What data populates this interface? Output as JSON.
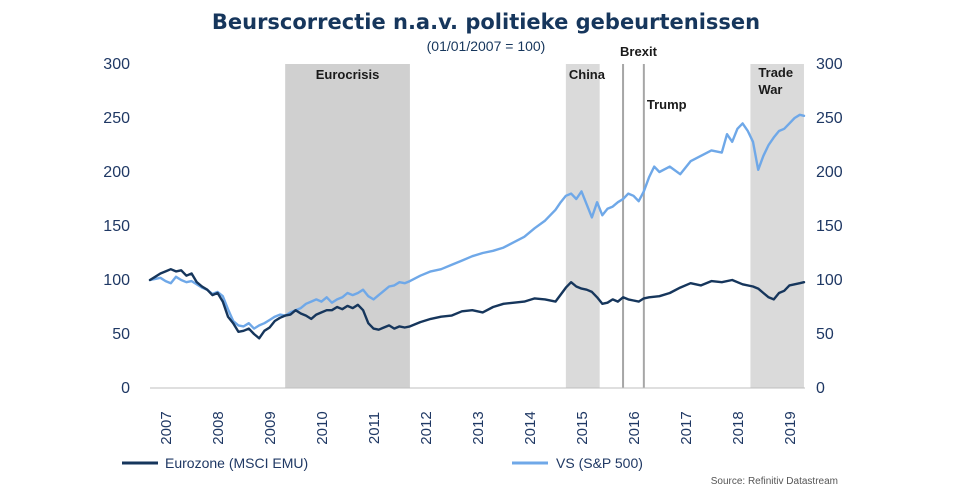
{
  "chart_data": {
    "type": "line",
    "title": "Beurscorrectie n.a.v. politieke gebeurtenissen",
    "subtitle": "(01/01/2007 = 100)",
    "source": "Source: Refinitiv Datastream",
    "x_range": [
      2007.0,
      2019.6
    ],
    "ylim": [
      0,
      300
    ],
    "left_ticks": [
      300,
      250,
      200,
      150,
      100,
      50,
      0
    ],
    "right_ticks": [
      300,
      250,
      200,
      150,
      100,
      50,
      0
    ],
    "x_tick_labels": [
      "2007",
      "2008",
      "2009",
      "2010",
      "2011",
      "2012",
      "2013",
      "2014",
      "2015",
      "2016",
      "2017",
      "2018",
      "2019"
    ],
    "grid": false,
    "legend_position": "bottom",
    "shaded_periods": [
      {
        "label": "Eurocrisis",
        "start": 2009.6,
        "end": 2012.0
      },
      {
        "label": "China",
        "start": 2015.0,
        "end": 2015.65
      },
      {
        "label_line1": "Trade",
        "label_line2": "War",
        "start": 2018.55,
        "end": 2019.58
      }
    ],
    "event_lines": [
      {
        "label": "Brexit",
        "x": 2016.1
      },
      {
        "label": "Trump",
        "x": 2016.5
      }
    ],
    "series": [
      {
        "name": "Eurozone (MSCI EMU)",
        "color": "#16365c",
        "x": [
          2007.0,
          2007.1,
          2007.2,
          2007.3,
          2007.4,
          2007.5,
          2007.6,
          2007.7,
          2007.8,
          2007.9,
          2008.0,
          2008.1,
          2008.2,
          2008.3,
          2008.4,
          2008.5,
          2008.6,
          2008.7,
          2008.8,
          2008.9,
          2009.0,
          2009.1,
          2009.2,
          2009.3,
          2009.4,
          2009.5,
          2009.6,
          2009.7,
          2009.8,
          2009.9,
          2010.0,
          2010.1,
          2010.2,
          2010.3,
          2010.4,
          2010.5,
          2010.6,
          2010.7,
          2010.8,
          2010.9,
          2011.0,
          2011.1,
          2011.2,
          2011.3,
          2011.4,
          2011.5,
          2011.6,
          2011.7,
          2011.8,
          2011.9,
          2012.0,
          2012.2,
          2012.4,
          2012.6,
          2012.8,
          2013.0,
          2013.2,
          2013.4,
          2013.6,
          2013.8,
          2014.0,
          2014.2,
          2014.4,
          2014.6,
          2014.8,
          2015.0,
          2015.1,
          2015.2,
          2015.3,
          2015.4,
          2015.5,
          2015.6,
          2015.7,
          2015.8,
          2015.9,
          2016.0,
          2016.1,
          2016.2,
          2016.3,
          2016.4,
          2016.5,
          2016.6,
          2016.8,
          2017.0,
          2017.2,
          2017.4,
          2017.6,
          2017.8,
          2018.0,
          2018.2,
          2018.4,
          2018.6,
          2018.7,
          2018.8,
          2018.9,
          2019.0,
          2019.1,
          2019.2,
          2019.3,
          2019.4,
          2019.5,
          2019.58
        ],
        "y": [
          100,
          103,
          106,
          108,
          110,
          108,
          109,
          104,
          106,
          98,
          94,
          91,
          86,
          88,
          80,
          66,
          60,
          52,
          53,
          55,
          50,
          46,
          53,
          56,
          62,
          65,
          67,
          68,
          72,
          69,
          67,
          64,
          68,
          70,
          72,
          72,
          75,
          73,
          76,
          74,
          77,
          72,
          60,
          55,
          54,
          56,
          58,
          55,
          57,
          56,
          57,
          61,
          64,
          66,
          67,
          71,
          72,
          70,
          75,
          78,
          79,
          80,
          83,
          82,
          80,
          93,
          98,
          94,
          92,
          91,
          89,
          84,
          78,
          79,
          82,
          80,
          84,
          82,
          81,
          80,
          83,
          84,
          85,
          88,
          93,
          97,
          95,
          99,
          98,
          100,
          96,
          94,
          92,
          88,
          84,
          82,
          88,
          90,
          95,
          96,
          97,
          98
        ]
      },
      {
        "name": "VS (S&P 500)",
        "color": "#6fa8e8",
        "x": [
          2007.0,
          2007.1,
          2007.2,
          2007.3,
          2007.4,
          2007.5,
          2007.6,
          2007.7,
          2007.8,
          2007.9,
          2008.0,
          2008.1,
          2008.2,
          2008.3,
          2008.4,
          2008.5,
          2008.6,
          2008.7,
          2008.8,
          2008.9,
          2009.0,
          2009.1,
          2009.2,
          2009.3,
          2009.4,
          2009.5,
          2009.6,
          2009.7,
          2009.8,
          2009.9,
          2010.0,
          2010.1,
          2010.2,
          2010.3,
          2010.4,
          2010.5,
          2010.6,
          2010.7,
          2010.8,
          2010.9,
          2011.0,
          2011.1,
          2011.2,
          2011.3,
          2011.4,
          2011.5,
          2011.6,
          2011.7,
          2011.8,
          2011.9,
          2012.0,
          2012.2,
          2012.4,
          2012.6,
          2012.8,
          2013.0,
          2013.2,
          2013.4,
          2013.6,
          2013.8,
          2014.0,
          2014.2,
          2014.4,
          2014.6,
          2014.8,
          2014.9,
          2015.0,
          2015.1,
          2015.2,
          2015.3,
          2015.4,
          2015.5,
          2015.6,
          2015.7,
          2015.8,
          2015.9,
          2016.0,
          2016.1,
          2016.2,
          2016.3,
          2016.4,
          2016.5,
          2016.6,
          2016.7,
          2016.8,
          2017.0,
          2017.2,
          2017.4,
          2017.6,
          2017.8,
          2018.0,
          2018.1,
          2018.2,
          2018.3,
          2018.4,
          2018.5,
          2018.6,
          2018.7,
          2018.8,
          2018.9,
          2019.0,
          2019.1,
          2019.2,
          2019.3,
          2019.4,
          2019.5,
          2019.58
        ],
        "y": [
          100,
          101,
          102,
          99,
          97,
          103,
          100,
          98,
          99,
          96,
          93,
          91,
          87,
          89,
          85,
          73,
          62,
          58,
          57,
          60,
          55,
          58,
          60,
          63,
          66,
          68,
          67,
          70,
          72,
          74,
          78,
          80,
          82,
          80,
          84,
          79,
          82,
          84,
          88,
          86,
          88,
          91,
          85,
          82,
          86,
          90,
          94,
          95,
          98,
          97,
          99,
          104,
          108,
          110,
          114,
          118,
          122,
          125,
          127,
          130,
          135,
          140,
          148,
          155,
          165,
          172,
          178,
          180,
          175,
          182,
          170,
          158,
          172,
          160,
          166,
          168,
          172,
          175,
          180,
          178,
          173,
          182,
          195,
          205,
          200,
          205,
          198,
          210,
          215,
          220,
          218,
          235,
          228,
          240,
          245,
          238,
          228,
          202,
          215,
          225,
          232,
          238,
          240,
          245,
          250,
          253,
          252
        ]
      }
    ]
  }
}
